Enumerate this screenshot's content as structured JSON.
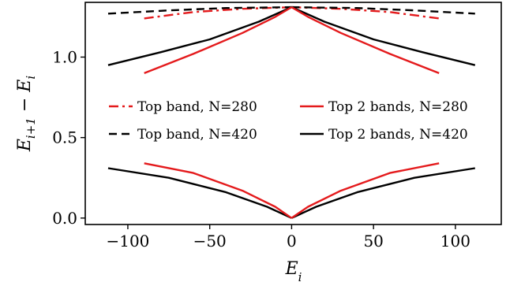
{
  "chart_data": {
    "type": "line",
    "title": "",
    "xlabel": "E_i",
    "ylabel": "E_{i+1} − E_i",
    "xlim": [
      -126,
      128
    ],
    "ylim": [
      -0.04,
      1.34
    ],
    "xticks": [
      -100,
      -50,
      0,
      50,
      100
    ],
    "xtick_labels": [
      "−100",
      "−50",
      "0",
      "50",
      "100"
    ],
    "yticks": [
      0.0,
      0.5,
      1.0
    ],
    "ytick_labels": [
      "0.0",
      "0.5",
      "1.0"
    ],
    "grid": false,
    "legend": {
      "placement": "center",
      "columns": 2,
      "entries": [
        {
          "label": "Top band, N=280",
          "color": "#e41a1c",
          "dash": "dashdot"
        },
        {
          "label": "Top 2 bands, N=280",
          "color": "#e41a1c",
          "dash": "solid"
        },
        {
          "label": "Top band, N=420",
          "color": "#000000",
          "dash": "dashed"
        },
        {
          "label": "Top 2 bands, N=420",
          "color": "#000000",
          "dash": "solid"
        }
      ]
    },
    "series": [
      {
        "color": "#e41a1c",
        "dash": "dashdot",
        "segments": [
          {
            "x": [
              -90,
              -60,
              -30,
              0
            ],
            "y": [
              1.24,
              1.28,
              1.3,
              1.31
            ]
          },
          {
            "x": [
              0,
              30,
              60,
              90
            ],
            "y": [
              1.31,
              1.3,
              1.28,
              1.24
            ]
          }
        ]
      },
      {
        "color": "#000000",
        "dash": "dashed",
        "segments": [
          {
            "x": [
              -112,
              -75,
              -40,
              0
            ],
            "y": [
              1.27,
              1.29,
              1.305,
              1.31
            ]
          },
          {
            "x": [
              0,
              40,
              75,
              112
            ],
            "y": [
              1.31,
              1.305,
              1.29,
              1.27
            ]
          }
        ]
      },
      {
        "color": "#000000",
        "dash": "solid",
        "segments": [
          {
            "x": [
              -112,
              -80,
              -50,
              -20,
              0
            ],
            "y": [
              0.95,
              1.03,
              1.11,
              1.22,
              1.31
            ]
          },
          {
            "x": [
              0,
              20,
              50,
              80,
              112
            ],
            "y": [
              1.31,
              1.22,
              1.11,
              1.03,
              0.95
            ]
          },
          {
            "x": [
              -112,
              -75,
              -40,
              -15,
              0
            ],
            "y": [
              0.31,
              0.25,
              0.16,
              0.07,
              0.0
            ]
          },
          {
            "x": [
              0,
              15,
              40,
              75,
              112
            ],
            "y": [
              0.0,
              0.07,
              0.16,
              0.25,
              0.31
            ]
          }
        ]
      },
      {
        "color": "#e41a1c",
        "dash": "solid",
        "segments": [
          {
            "x": [
              -90,
              -60,
              -30,
              -10,
              0
            ],
            "y": [
              0.9,
              1.02,
              1.15,
              1.25,
              1.31
            ]
          },
          {
            "x": [
              0,
              10,
              30,
              60,
              90
            ],
            "y": [
              1.31,
              1.25,
              1.15,
              1.02,
              0.9
            ]
          },
          {
            "x": [
              -90,
              -60,
              -30,
              -10,
              0
            ],
            "y": [
              0.34,
              0.28,
              0.17,
              0.07,
              0.0
            ]
          },
          {
            "x": [
              0,
              10,
              30,
              60,
              90
            ],
            "y": [
              0.0,
              0.07,
              0.17,
              0.28,
              0.34
            ]
          }
        ]
      }
    ]
  }
}
